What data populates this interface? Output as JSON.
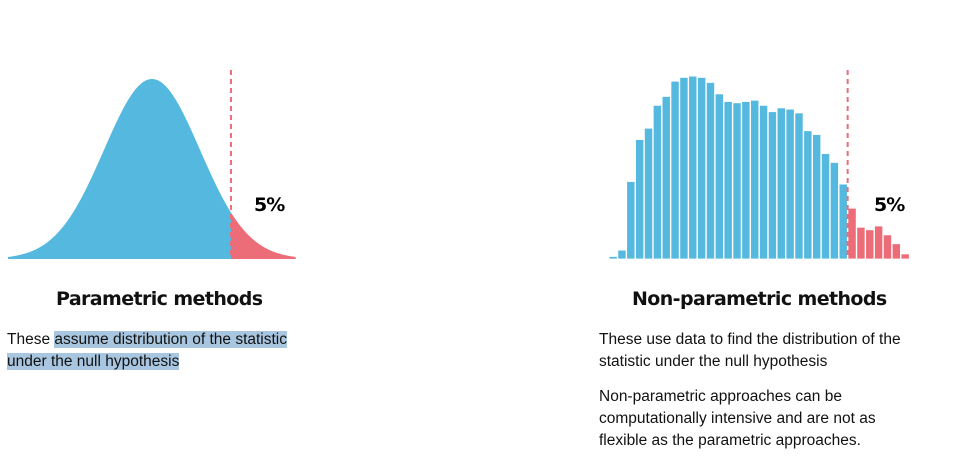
{
  "colors": {
    "main": "#55b8df",
    "tail": "#ec6d78",
    "highlight": "#a9c6e0",
    "text": "#111111"
  },
  "parametric": {
    "title": "Parametric methods",
    "desc_pre": "These ",
    "desc_highlight_line1": "assume distribution of the statistic",
    "desc_highlight_line2": "under the null hypothesis",
    "tail_label": "5%"
  },
  "nonparametric": {
    "title": "Non-parametric methods",
    "desc1": "These use data to find the distribution of the statistic under the null hypothesis",
    "desc2": "Non-parametric approaches can be computationally intensive and are not as flexible as the parametric approaches.",
    "tail_label": "5%"
  },
  "chart_data": [
    {
      "type": "area",
      "x": [
        -3.0,
        -2.5,
        -2.0,
        -1.5,
        -1.0,
        -0.5,
        0.0,
        0.5,
        1.0,
        1.5,
        2.0,
        2.5,
        3.0
      ],
      "values": [
        0.004,
        0.018,
        0.054,
        0.13,
        0.242,
        0.352,
        0.399,
        0.352,
        0.242,
        0.13,
        0.054,
        0.018,
        0.004
      ],
      "threshold_x": 1.645,
      "tail_share": "5%"
    },
    {
      "type": "bar",
      "values": [
        2,
        7,
        61,
        94,
        103,
        121,
        128,
        140,
        143,
        144,
        143,
        139,
        130,
        124,
        123,
        124,
        125,
        121,
        116,
        119,
        118,
        115,
        101,
        98,
        83,
        76,
        59,
        40,
        25,
        23,
        26,
        19,
        12,
        4
      ],
      "tail_start_index": 27,
      "tail_share": "5%"
    }
  ]
}
